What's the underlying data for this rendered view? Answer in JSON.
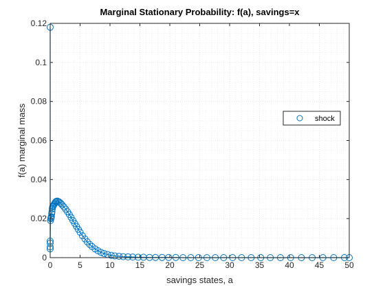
{
  "chart_data": {
    "type": "scatter",
    "title": "Marginal Stationary Probability: f(a), savings=x",
    "xlabel": "savings states, a",
    "ylabel": "f(a) marginal mass",
    "xlim": [
      0,
      50
    ],
    "ylim": [
      0,
      0.12
    ],
    "xticks": [
      0,
      5,
      10,
      15,
      20,
      25,
      30,
      35,
      40,
      45,
      50
    ],
    "yticks": [
      0,
      0.02,
      0.04,
      0.06,
      0.08,
      0.1,
      0.12
    ],
    "grid": "on-with-minor",
    "legend_placement": "right",
    "marker": "open-circle",
    "series_color": "#0072BD",
    "series": [
      {
        "name": "shock",
        "points": [
          [
            0,
            0.118
          ],
          [
            0,
            0.0085
          ],
          [
            0,
            0.0075
          ],
          [
            0,
            0.0055
          ],
          [
            0,
            0.0045
          ],
          [
            0.05,
            0.019
          ],
          [
            0.1,
            0.02
          ],
          [
            0.15,
            0.0205
          ],
          [
            0.2,
            0.021
          ],
          [
            0.25,
            0.0225
          ],
          [
            0.3,
            0.0235
          ],
          [
            0.35,
            0.025
          ],
          [
            0.4,
            0.026
          ],
          [
            0.5,
            0.0265
          ],
          [
            0.6,
            0.027
          ],
          [
            0.7,
            0.0275
          ],
          [
            0.8,
            0.028
          ],
          [
            0.9,
            0.0285
          ],
          [
            1.0,
            0.0288
          ],
          [
            1.2,
            0.029
          ],
          [
            1.4,
            0.0287
          ],
          [
            1.6,
            0.0283
          ],
          [
            1.8,
            0.0277
          ],
          [
            2.0,
            0.027
          ],
          [
            2.3,
            0.026
          ],
          [
            2.6,
            0.0248
          ],
          [
            2.9,
            0.0235
          ],
          [
            3.2,
            0.0221
          ],
          [
            3.5,
            0.0206
          ],
          [
            3.8,
            0.019
          ],
          [
            4.1,
            0.0175
          ],
          [
            4.4,
            0.016
          ],
          [
            4.7,
            0.0145
          ],
          [
            5.0,
            0.013
          ],
          [
            5.4,
            0.0112
          ],
          [
            5.8,
            0.0096
          ],
          [
            6.2,
            0.0081
          ],
          [
            6.6,
            0.0068
          ],
          [
            7.0,
            0.0057
          ],
          [
            7.5,
            0.0045
          ],
          [
            8.0,
            0.0035
          ],
          [
            8.5,
            0.0027
          ],
          [
            9.0,
            0.0021
          ],
          [
            9.6,
            0.0016
          ],
          [
            10.2,
            0.0012
          ],
          [
            10.8,
            0.0009
          ],
          [
            11.5,
            0.0007
          ],
          [
            12.2,
            0.0005
          ],
          [
            13.0,
            0.0004
          ],
          [
            13.8,
            0.0003
          ],
          [
            14.7,
            0.0002
          ],
          [
            15.6,
            0.0002
          ],
          [
            16.6,
            0.0001
          ],
          [
            17.6,
            0.0001
          ],
          [
            18.7,
            0.0001
          ],
          [
            19.8,
            0.0001
          ],
          [
            21.0,
            0.0001
          ],
          [
            22.2,
            0.0
          ],
          [
            23.5,
            0.0
          ],
          [
            24.8,
            0.0
          ],
          [
            26.2,
            0.0
          ],
          [
            27.6,
            0.0
          ],
          [
            29.0,
            0.0
          ],
          [
            30.5,
            0.0
          ],
          [
            32.0,
            0.0
          ],
          [
            33.6,
            0.0
          ],
          [
            35.2,
            0.0
          ],
          [
            36.8,
            0.0
          ],
          [
            38.5,
            0.0
          ],
          [
            40.2,
            0.0
          ],
          [
            42.0,
            0.0
          ],
          [
            43.8,
            0.0
          ],
          [
            45.6,
            0.0
          ],
          [
            47.4,
            0.0
          ],
          [
            49.2,
            0.0
          ],
          [
            50.0,
            0.0
          ]
        ]
      }
    ]
  }
}
